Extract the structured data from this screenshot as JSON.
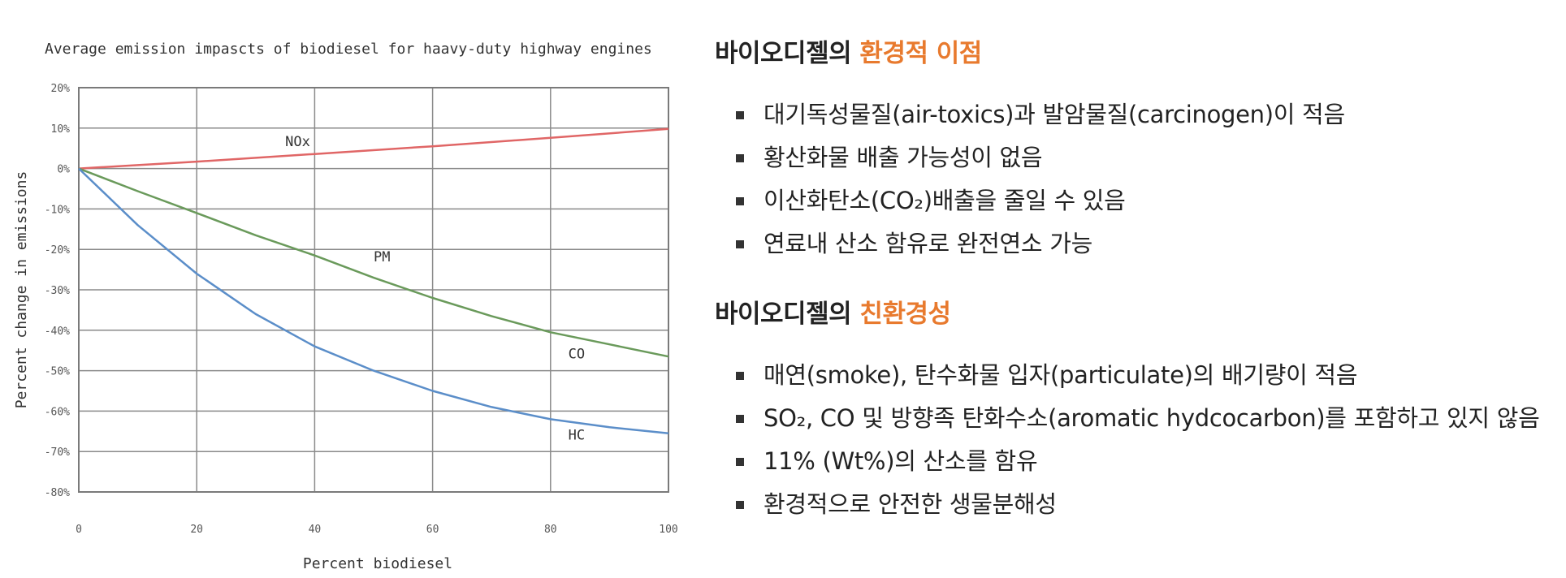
{
  "chart_data": {
    "type": "line",
    "title": "Average emission impascts of biodiesel for haavy-duty highway engines",
    "xlabel": "Percent biodiesel",
    "ylabel": "Percent change in emissions",
    "xlim": [
      0,
      100
    ],
    "ylim": [
      -80,
      20
    ],
    "xticks": [
      "0",
      "20",
      "40",
      "60",
      "80",
      "100"
    ],
    "yticks": [
      "20%",
      "10%",
      "0%",
      "-10%",
      "-20%",
      "-30%",
      "-40%",
      "-50%",
      "-60%",
      "-70%",
      "-80%"
    ],
    "grid": true,
    "series": [
      {
        "name": "NOx",
        "color": "#e06666",
        "x": [
          0,
          20,
          40,
          60,
          80,
          100
        ],
        "values": [
          0,
          1.7,
          3.6,
          5.5,
          7.6,
          9.8
        ]
      },
      {
        "name": "PM",
        "color": "#6a9a5b",
        "x": [
          0,
          10,
          20,
          30,
          40,
          50,
          60,
          70,
          80,
          90,
          100
        ],
        "values": [
          0,
          -5.6,
          -11,
          -16.5,
          -21.5,
          -27,
          -32,
          -36.5,
          -40.5,
          -43.5,
          -46.5
        ]
      },
      {
        "name": "CO",
        "color": "#6a9a5b",
        "x": [],
        "values": []
      },
      {
        "name": "HC",
        "color": "#5b8ec9",
        "x": [
          0,
          10,
          20,
          30,
          40,
          50,
          60,
          70,
          80,
          90,
          100
        ],
        "values": [
          0,
          -14,
          -26,
          -36,
          -44,
          -50,
          -55,
          -59,
          -62,
          -64,
          -65.5
        ]
      }
    ],
    "labels": [
      {
        "text": "NOx",
        "x": 35,
        "y": 5.5
      },
      {
        "text": "PM",
        "x": 50,
        "y": -23
      },
      {
        "text": "CO",
        "x": 83,
        "y": -47
      },
      {
        "text": "HC",
        "x": 83,
        "y": -67
      }
    ]
  },
  "panel": {
    "sections": [
      {
        "title_prefix": "바이오디젤의 ",
        "title_accent": "환경적 이점",
        "items": [
          "대기독성물질(air-toxics)과 발암물질(carcinogen)이 적음",
          "황산화물 배출 가능성이 없음",
          "이산화탄소(CO₂)배출을 줄일 수 있음",
          "연료내 산소 함유로 완전연소 가능"
        ]
      },
      {
        "title_prefix": "바이오디젤의 ",
        "title_accent": "친환경성",
        "items": [
          "매연(smoke), 탄수화물 입자(particulate)의 배기량이 적음",
          "SO₂, CO 및 방향족 탄화수소(aromatic hydcocarbon)를 포함하고 있지 않음",
          "11% (Wt%)의 산소를 함유",
          "환경적으로 안전한 생물분해성"
        ]
      }
    ],
    "accent_color": "#e87a2e"
  }
}
